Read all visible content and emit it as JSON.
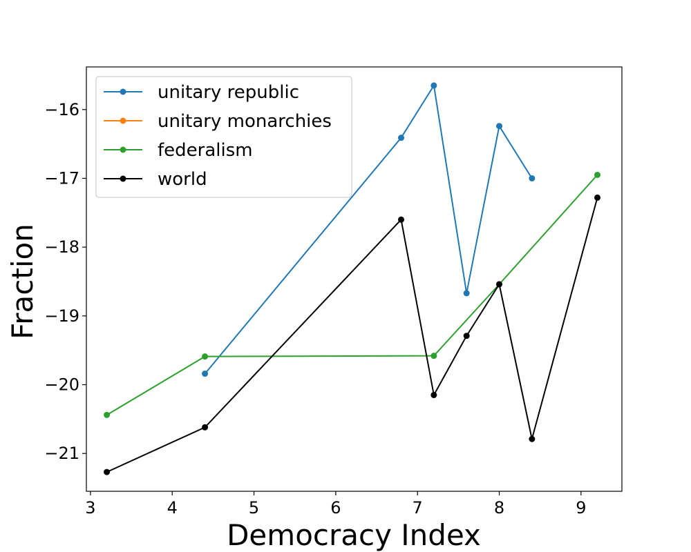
{
  "chart_data": {
    "type": "line",
    "xlabel": "Democracy Index",
    "ylabel": "Fraction",
    "xlim": [
      2.95,
      9.5
    ],
    "ylim": [
      -21.55,
      -15.38
    ],
    "xticks": [
      3,
      4,
      5,
      6,
      7,
      8,
      9
    ],
    "yticks": [
      -21,
      -20,
      -19,
      -18,
      -17,
      -16
    ],
    "grid": false,
    "legend_position": "upper-left",
    "series": [
      {
        "name": "unitary republic",
        "color": "#1f77b4",
        "marker": "circle",
        "points": [
          [
            4.4,
            -19.84
          ],
          [
            6.8,
            -16.41
          ],
          [
            7.2,
            -15.65
          ],
          [
            7.6,
            -18.67
          ],
          [
            8.0,
            -16.24
          ],
          [
            8.4,
            -17.0
          ]
        ]
      },
      {
        "name": "unitary monarchies",
        "color": "#ff7f0e",
        "marker": "circle",
        "points": []
      },
      {
        "name": "federalism",
        "color": "#2ca02c",
        "marker": "circle",
        "points": [
          [
            3.2,
            -20.44
          ],
          [
            4.4,
            -19.59
          ],
          [
            7.2,
            -19.58
          ],
          [
            8.0,
            -18.54
          ],
          [
            9.2,
            -16.95
          ]
        ]
      },
      {
        "name": "world",
        "color": "#000000",
        "marker": "circle",
        "points": [
          [
            3.2,
            -21.27
          ],
          [
            4.4,
            -20.62
          ],
          [
            6.8,
            -17.6
          ],
          [
            7.2,
            -20.15
          ],
          [
            7.6,
            -19.29
          ],
          [
            8.0,
            -18.54
          ],
          [
            8.4,
            -20.79
          ],
          [
            9.2,
            -17.28
          ]
        ]
      }
    ]
  }
}
